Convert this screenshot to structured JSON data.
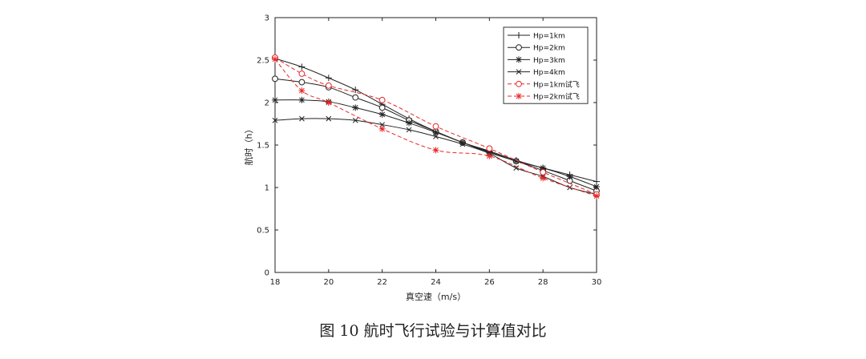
{
  "caption": "图 10   航时飞行试验与计算值对比",
  "chart_data": {
    "type": "line",
    "xlabel": "真空速（m/s）",
    "ylabel": "航时（h）",
    "xlim": [
      18,
      30
    ],
    "ylim": [
      0,
      3
    ],
    "xticks": [
      "18",
      "20",
      "22",
      "24",
      "26",
      "28",
      "30"
    ],
    "yticks": [
      "0",
      "0.5",
      "1",
      "1.5",
      "2",
      "2.5",
      "3"
    ],
    "grid": false,
    "legend_position": "top-right",
    "series": [
      {
        "name": "Hp=1km",
        "marker": "plus",
        "color": "#222222",
        "dashed": false,
        "x": [
          18,
          19,
          20,
          21,
          22,
          23,
          24,
          25,
          26,
          27,
          28,
          29,
          30
        ],
        "y": [
          2.52,
          2.42,
          2.29,
          2.15,
          1.98,
          1.81,
          1.66,
          1.53,
          1.43,
          1.32,
          1.23,
          1.15,
          1.07
        ]
      },
      {
        "name": "Hp=2km",
        "marker": "circle",
        "color": "#222222",
        "dashed": false,
        "x": [
          18,
          19,
          20,
          21,
          22,
          23,
          24,
          25,
          26,
          27,
          28,
          29,
          30
        ],
        "y": [
          2.28,
          2.24,
          2.18,
          2.06,
          1.94,
          1.79,
          1.66,
          1.53,
          1.41,
          1.31,
          1.2,
          1.08,
          0.96
        ]
      },
      {
        "name": "Hp=3km",
        "marker": "asterisk",
        "color": "#222222",
        "dashed": false,
        "x": [
          18,
          19,
          20,
          21,
          22,
          23,
          24,
          25,
          26,
          27,
          28,
          29,
          30
        ],
        "y": [
          2.03,
          2.03,
          2.01,
          1.94,
          1.86,
          1.76,
          1.65,
          1.53,
          1.42,
          1.31,
          1.23,
          1.13,
          1.01
        ]
      },
      {
        "name": "Hp=4km",
        "marker": "x",
        "color": "#222222",
        "dashed": false,
        "x": [
          18,
          19,
          20,
          21,
          22,
          23,
          24,
          25,
          26,
          27,
          28,
          29,
          30
        ],
        "y": [
          1.79,
          1.81,
          1.81,
          1.79,
          1.74,
          1.68,
          1.6,
          1.51,
          1.4,
          1.23,
          1.13,
          1.0,
          0.92
        ]
      },
      {
        "name": "Hp=1km试飞",
        "marker": "circle",
        "color": "#e8282a",
        "dashed": true,
        "x": [
          18,
          19,
          20,
          22,
          24,
          26,
          28,
          30
        ],
        "y": [
          2.53,
          2.34,
          2.2,
          2.03,
          1.72,
          1.46,
          1.18,
          0.92
        ]
      },
      {
        "name": "Hp=2km试飞",
        "marker": "asterisk",
        "color": "#e8282a",
        "dashed": true,
        "x": [
          18,
          19,
          20,
          22,
          24,
          26,
          28,
          30
        ],
        "y": [
          2.51,
          2.14,
          2.0,
          1.69,
          1.44,
          1.37,
          1.11,
          0.9
        ]
      }
    ]
  }
}
